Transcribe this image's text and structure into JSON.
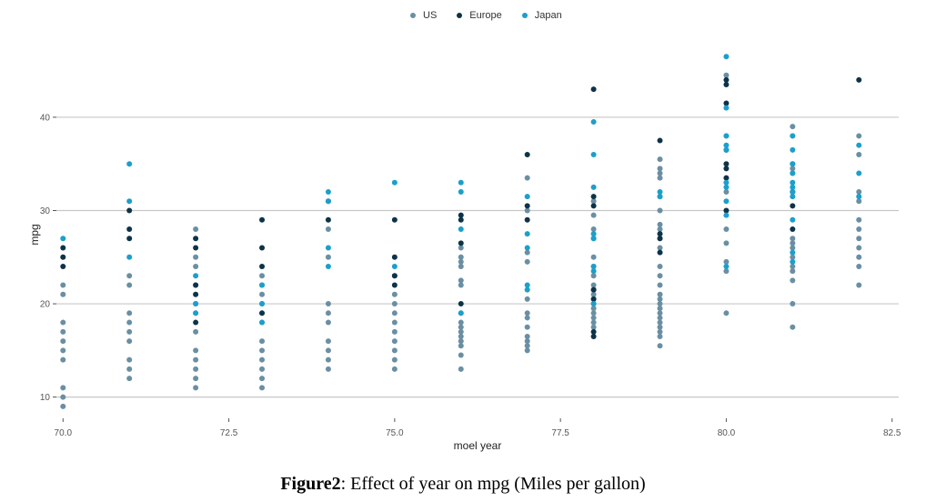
{
  "chart_data": {
    "type": "scatter",
    "title": "",
    "xlabel": "moel year",
    "ylabel": "mpg",
    "xlim": [
      69.9,
      82.6
    ],
    "ylim": [
      8.5,
      47.5
    ],
    "xticks": [
      70.0,
      72.5,
      75.0,
      77.5,
      80.0,
      82.5
    ],
    "xtick_labels": [
      "70.0",
      "72.5",
      "75.0",
      "77.5",
      "80.0",
      "82.5"
    ],
    "yticks": [
      10,
      20,
      30,
      40
    ],
    "ytick_labels": [
      "10",
      "20",
      "30",
      "40"
    ],
    "grid": true,
    "legend_position": "top-center",
    "series": [
      {
        "name": "US",
        "color": "#6a8fa3",
        "points": [
          [
            70,
            9
          ],
          [
            70,
            10
          ],
          [
            70,
            11
          ],
          [
            70,
            14
          ],
          [
            70,
            15
          ],
          [
            70,
            16
          ],
          [
            70,
            17
          ],
          [
            70,
            18
          ],
          [
            70,
            21
          ],
          [
            70,
            22
          ],
          [
            71,
            12
          ],
          [
            71,
            13
          ],
          [
            71,
            14
          ],
          [
            71,
            16
          ],
          [
            71,
            17
          ],
          [
            71,
            18
          ],
          [
            71,
            19
          ],
          [
            71,
            22
          ],
          [
            71,
            23
          ],
          [
            72,
            11
          ],
          [
            72,
            12
          ],
          [
            72,
            13
          ],
          [
            72,
            14
          ],
          [
            72,
            15
          ],
          [
            72,
            17
          ],
          [
            72,
            19
          ],
          [
            72,
            20
          ],
          [
            72,
            22
          ],
          [
            72,
            24
          ],
          [
            72,
            25
          ],
          [
            72,
            28
          ],
          [
            73,
            11
          ],
          [
            73,
            12
          ],
          [
            73,
            13
          ],
          [
            73,
            14
          ],
          [
            73,
            15
          ],
          [
            73,
            16
          ],
          [
            73,
            18
          ],
          [
            73,
            19
          ],
          [
            73,
            20
          ],
          [
            73,
            21
          ],
          [
            73,
            22
          ],
          [
            73,
            23
          ],
          [
            74,
            13
          ],
          [
            74,
            14
          ],
          [
            74,
            15
          ],
          [
            74,
            16
          ],
          [
            74,
            18
          ],
          [
            74,
            19
          ],
          [
            74,
            20
          ],
          [
            74,
            25
          ],
          [
            74,
            28
          ],
          [
            75,
            13
          ],
          [
            75,
            14
          ],
          [
            75,
            15
          ],
          [
            75,
            16
          ],
          [
            75,
            17
          ],
          [
            75,
            18
          ],
          [
            75,
            19
          ],
          [
            75,
            20
          ],
          [
            75,
            21
          ],
          [
            75,
            23
          ],
          [
            76,
            13
          ],
          [
            76,
            14.5
          ],
          [
            76,
            15.5
          ],
          [
            76,
            16
          ],
          [
            76,
            16.5
          ],
          [
            76,
            17
          ],
          [
            76,
            17.5
          ],
          [
            76,
            18
          ],
          [
            76,
            19
          ],
          [
            76,
            22
          ],
          [
            76,
            22.5
          ],
          [
            76,
            24
          ],
          [
            76,
            24.5
          ],
          [
            76,
            25
          ],
          [
            76,
            26
          ],
          [
            77,
            15
          ],
          [
            77,
            15.5
          ],
          [
            77,
            16
          ],
          [
            77,
            16.5
          ],
          [
            77,
            17.5
          ],
          [
            77,
            18.5
          ],
          [
            77,
            19
          ],
          [
            77,
            20.5
          ],
          [
            77,
            24.5
          ],
          [
            77,
            25.5
          ],
          [
            77,
            30
          ],
          [
            77,
            33.5
          ],
          [
            78,
            17.5
          ],
          [
            78,
            18
          ],
          [
            78,
            18.5
          ],
          [
            78,
            19
          ],
          [
            78,
            19.5
          ],
          [
            78,
            20
          ],
          [
            78,
            20.5
          ],
          [
            78,
            21
          ],
          [
            78,
            21.5
          ],
          [
            78,
            22
          ],
          [
            78,
            23
          ],
          [
            78,
            24
          ],
          [
            78,
            25
          ],
          [
            78,
            27
          ],
          [
            78,
            28
          ],
          [
            78,
            29.5
          ],
          [
            78,
            31
          ],
          [
            79,
            15.5
          ],
          [
            79,
            16.5
          ],
          [
            79,
            17
          ],
          [
            79,
            17.5
          ],
          [
            79,
            18
          ],
          [
            79,
            18.5
          ],
          [
            79,
            19
          ],
          [
            79,
            19.5
          ],
          [
            79,
            20
          ],
          [
            79,
            20.5
          ],
          [
            79,
            21
          ],
          [
            79,
            22
          ],
          [
            79,
            23
          ],
          [
            79,
            24
          ],
          [
            79,
            26
          ],
          [
            79,
            27
          ],
          [
            79,
            28
          ],
          [
            79,
            28.5
          ],
          [
            79,
            30
          ],
          [
            79,
            31.5
          ],
          [
            79,
            33.5
          ],
          [
            79,
            34
          ],
          [
            79,
            34.5
          ],
          [
            79,
            35.5
          ],
          [
            80,
            19
          ],
          [
            80,
            23.5
          ],
          [
            80,
            24.5
          ],
          [
            80,
            26.5
          ],
          [
            80,
            28
          ],
          [
            80,
            32
          ],
          [
            80,
            38
          ],
          [
            80,
            44.5
          ],
          [
            81,
            17.5
          ],
          [
            81,
            20
          ],
          [
            81,
            22.5
          ],
          [
            81,
            23.5
          ],
          [
            81,
            24
          ],
          [
            81,
            25
          ],
          [
            81,
            26
          ],
          [
            81,
            26.5
          ],
          [
            81,
            27
          ],
          [
            81,
            32
          ],
          [
            81,
            34
          ],
          [
            81,
            34.5
          ],
          [
            81,
            35
          ],
          [
            81,
            38
          ],
          [
            81,
            39
          ],
          [
            82,
            22
          ],
          [
            82,
            24
          ],
          [
            82,
            25
          ],
          [
            82,
            26
          ],
          [
            82,
            27
          ],
          [
            82,
            28
          ],
          [
            82,
            29
          ],
          [
            82,
            31
          ],
          [
            82,
            32
          ],
          [
            82,
            36
          ],
          [
            82,
            38
          ]
        ]
      },
      {
        "name": "Europe",
        "color": "#0d3349",
        "points": [
          [
            70,
            24
          ],
          [
            70,
            25
          ],
          [
            70,
            26
          ],
          [
            71,
            27
          ],
          [
            71,
            28
          ],
          [
            71,
            30
          ],
          [
            72,
            18
          ],
          [
            72,
            21
          ],
          [
            72,
            22
          ],
          [
            72,
            26
          ],
          [
            72,
            27
          ],
          [
            73,
            19
          ],
          [
            73,
            24
          ],
          [
            73,
            26
          ],
          [
            73,
            29
          ],
          [
            74,
            29
          ],
          [
            74,
            31
          ],
          [
            75,
            22
          ],
          [
            75,
            23
          ],
          [
            75,
            25
          ],
          [
            75,
            29
          ],
          [
            76,
            20
          ],
          [
            76,
            26.5
          ],
          [
            76,
            29
          ],
          [
            76,
            29.5
          ],
          [
            77,
            29
          ],
          [
            77,
            30.5
          ],
          [
            77,
            36
          ],
          [
            78,
            16.5
          ],
          [
            78,
            17
          ],
          [
            78,
            20.5
          ],
          [
            78,
            21.5
          ],
          [
            78,
            30.5
          ],
          [
            78,
            31.5
          ],
          [
            78,
            43
          ],
          [
            79,
            25.5
          ],
          [
            79,
            27
          ],
          [
            79,
            27.5
          ],
          [
            79,
            37.5
          ],
          [
            80,
            30
          ],
          [
            80,
            33.5
          ],
          [
            80,
            34.5
          ],
          [
            80,
            35
          ],
          [
            80,
            36.5
          ],
          [
            80,
            41.5
          ],
          [
            80,
            43.5
          ],
          [
            80,
            44
          ],
          [
            81,
            28
          ],
          [
            81,
            30.5
          ],
          [
            81,
            32
          ],
          [
            82,
            44
          ]
        ]
      },
      {
        "name": "Japan",
        "color": "#1b9fcc",
        "points": [
          [
            70,
            27
          ],
          [
            71,
            25
          ],
          [
            71,
            31
          ],
          [
            71,
            35
          ],
          [
            72,
            19
          ],
          [
            72,
            20
          ],
          [
            72,
            23
          ],
          [
            73,
            18
          ],
          [
            73,
            20
          ],
          [
            73,
            22
          ],
          [
            74,
            24
          ],
          [
            74,
            26
          ],
          [
            74,
            31
          ],
          [
            74,
            32
          ],
          [
            75,
            24
          ],
          [
            75,
            33
          ],
          [
            76,
            19
          ],
          [
            76,
            28
          ],
          [
            76,
            32
          ],
          [
            76,
            33
          ],
          [
            77,
            21.5
          ],
          [
            77,
            22
          ],
          [
            77,
            26
          ],
          [
            77,
            27.5
          ],
          [
            77,
            31.5
          ],
          [
            78,
            20
          ],
          [
            78,
            23.5
          ],
          [
            78,
            24
          ],
          [
            78,
            27
          ],
          [
            78,
            27.5
          ],
          [
            78,
            32.5
          ],
          [
            78,
            36
          ],
          [
            78,
            39.5
          ],
          [
            79,
            31.5
          ],
          [
            79,
            32
          ],
          [
            80,
            24
          ],
          [
            80,
            29.5
          ],
          [
            80,
            31
          ],
          [
            80,
            32.5
          ],
          [
            80,
            33
          ],
          [
            80,
            36.5
          ],
          [
            80,
            37
          ],
          [
            80,
            38
          ],
          [
            80,
            41
          ],
          [
            80,
            46.5
          ],
          [
            81,
            24.5
          ],
          [
            81,
            25.5
          ],
          [
            81,
            29
          ],
          [
            81,
            31.5
          ],
          [
            81,
            32
          ],
          [
            81,
            32.5
          ],
          [
            81,
            33
          ],
          [
            81,
            34
          ],
          [
            81,
            35
          ],
          [
            81,
            36.5
          ],
          [
            81,
            38
          ],
          [
            82,
            31.5
          ],
          [
            82,
            34
          ],
          [
            82,
            37
          ]
        ]
      }
    ]
  },
  "caption": {
    "label": "Figure2",
    "text": ": Effect of year on mpg (Miles per gallon)"
  }
}
